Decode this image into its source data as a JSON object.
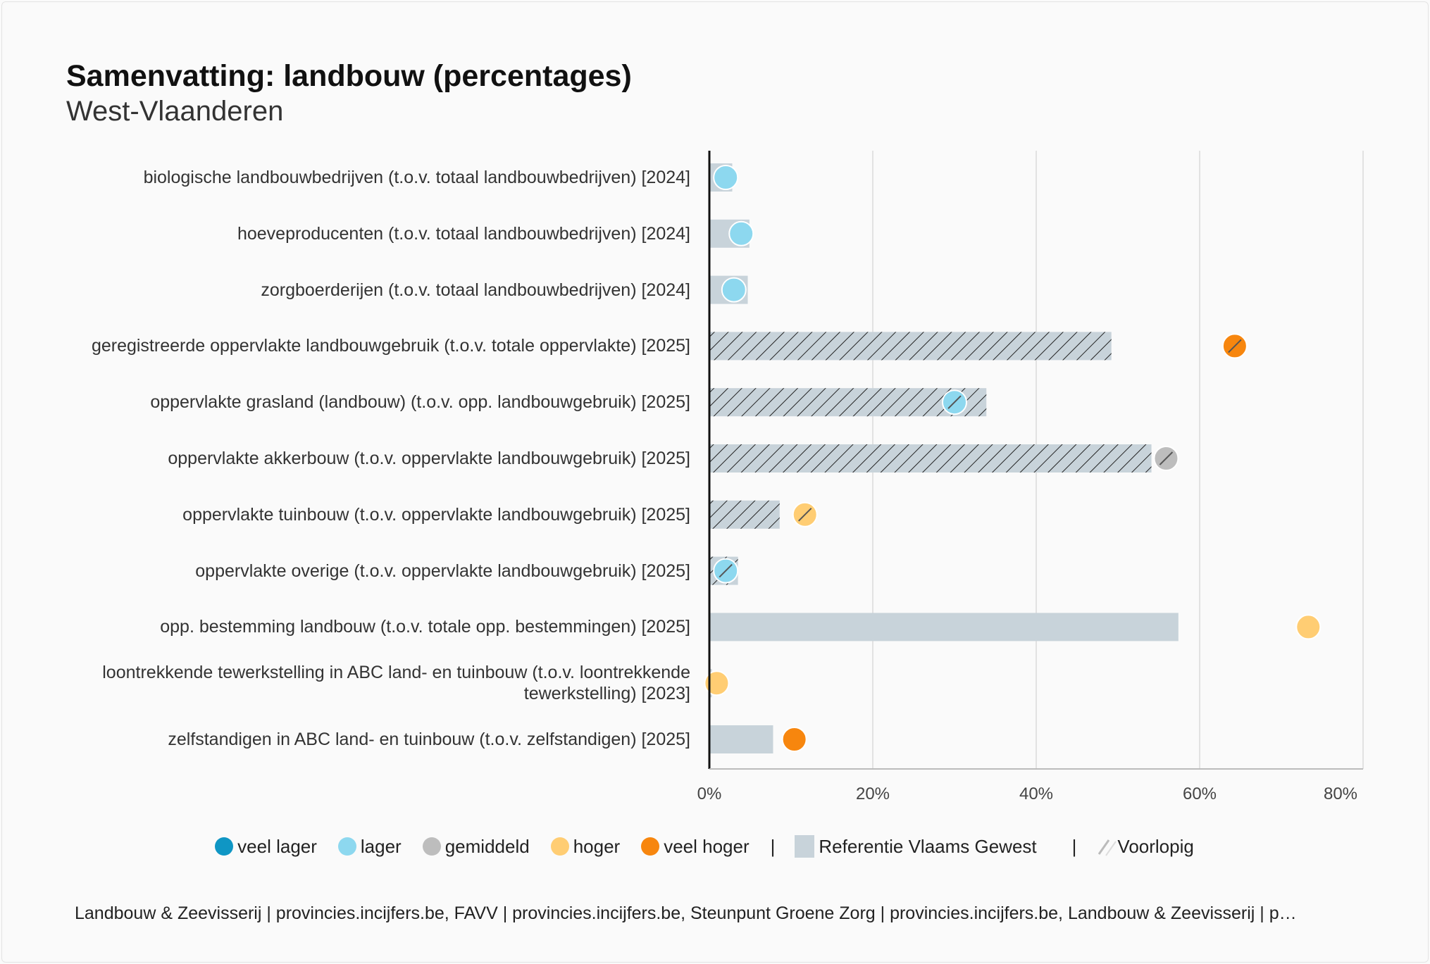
{
  "title": "Samenvatting: landbouw (percentages)",
  "subtitle": "West-Vlaanderen",
  "chart_data": {
    "type": "bar",
    "orientation": "horizontal",
    "title": "Samenvatting: landbouw (percentages)",
    "subtitle": "West-Vlaanderen",
    "xlim": [
      0,
      80
    ],
    "xticks": [
      "0%",
      "20%",
      "40%",
      "60%",
      "80%"
    ],
    "xtick_values": [
      0,
      20,
      40,
      60,
      80
    ],
    "grid": true,
    "categories": [
      "biologische landbouwbedrijven (t.o.v. totaal landbouwbedrijven) [2024]",
      "hoeveproducenten (t.o.v. totaal landbouwbedrijven) [2024]",
      "zorgboerderijen (t.o.v. totaal landbouwbedrijven) [2024]",
      "geregistreerde oppervlakte landbouwgebruik (t.o.v. totale oppervlakte) [2025]",
      "oppervlakte grasland (landbouw) (t.o.v. opp. landbouwgebruik) [2025]",
      "oppervlakte akkerbouw (t.o.v. oppervlakte landbouwgebruik) [2025]",
      "oppervlakte tuinbouw (t.o.v. oppervlakte landbouwgebruik) [2025]",
      "oppervlakte overige (t.o.v. oppervlakte landbouwgebruik) [2025]",
      "opp. bestemming landbouw (t.o.v. totale opp. bestemmingen) [2025]",
      "loontrekkende tewerkstelling in ABC land- en tuinbouw (t.o.v. loontrekkende tewerkstelling) [2023]",
      "zelfstandigen in ABC land- en tuinbouw (t.o.v. zelfstandigen) [2025]"
    ],
    "series": [
      {
        "name": "Referentie Vlaams Gewest",
        "values": [
          2.8,
          4.9,
          4.7,
          49.2,
          33.9,
          54.1,
          8.6,
          3.5,
          57.4,
          0.3,
          7.8
        ]
      },
      {
        "name": "West-Vlaanderen",
        "values": [
          2.0,
          3.9,
          3.0,
          64.3,
          30.0,
          55.9,
          11.7,
          2.0,
          73.3,
          0.9,
          10.4
        ],
        "class": [
          "lager",
          "lager",
          "lager",
          "veel hoger",
          "lager",
          "gemiddeld",
          "hoger",
          "lager",
          "hoger",
          "hoger",
          "veel hoger"
        ]
      }
    ],
    "provisional": [
      false,
      false,
      false,
      true,
      true,
      true,
      true,
      true,
      false,
      false,
      false
    ]
  },
  "legend": {
    "classes": [
      {
        "key": "veel lager",
        "label": "veel lager",
        "color": "#0f96c4"
      },
      {
        "key": "lager",
        "label": "lager",
        "color": "#8dd8ef"
      },
      {
        "key": "gemiddeld",
        "label": "gemiddeld",
        "color": "#bdbdbd"
      },
      {
        "key": "hoger",
        "label": "hoger",
        "color": "#ffcd73"
      },
      {
        "key": "veel hoger",
        "label": "veel hoger",
        "color": "#f7860e"
      }
    ],
    "separator": "|",
    "reference_label": "Referentie Vlaams Gewest",
    "reference_color": "#c8d3da",
    "provisional_label": "Voorlopig"
  },
  "footer": "Landbouw & Zeevisserij | provincies.incijfers.be, FAVV | provincies.incijfers.be, Steunpunt Groene Zorg | provincies.incijfers.be, Landbouw & Zeevisserij | p…"
}
